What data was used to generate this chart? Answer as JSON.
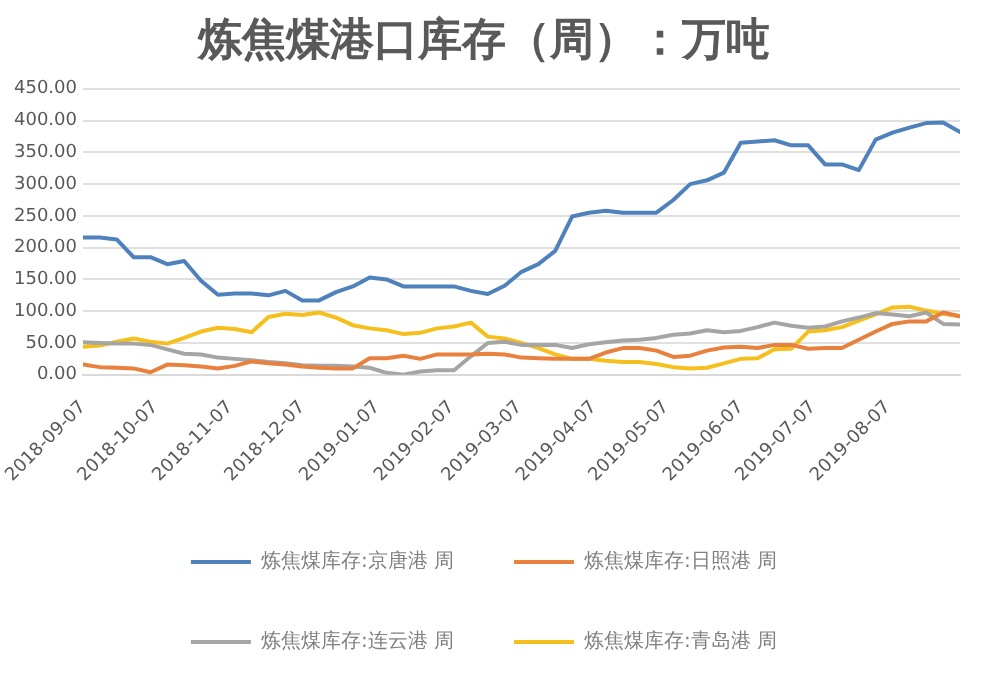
{
  "chart_data": {
    "type": "line",
    "title": "炼焦煤港口库存（周）：万吨",
    "x": [
      "2018-09-07",
      "2018-09-14",
      "2018-09-21",
      "2018-09-28",
      "2018-10-05",
      "2018-10-12",
      "2018-10-19",
      "2018-10-26",
      "2018-11-02",
      "2018-11-09",
      "2018-11-16",
      "2018-11-23",
      "2018-11-30",
      "2018-12-07",
      "2018-12-14",
      "2018-12-21",
      "2018-12-28",
      "2019-01-04",
      "2019-01-11",
      "2019-01-18",
      "2019-01-25",
      "2019-02-01",
      "2019-02-08",
      "2019-02-15",
      "2019-02-22",
      "2019-03-01",
      "2019-03-08",
      "2019-03-15",
      "2019-03-22",
      "2019-03-29",
      "2019-04-05",
      "2019-04-12",
      "2019-04-19",
      "2019-04-26",
      "2019-05-03",
      "2019-05-10",
      "2019-05-17",
      "2019-05-24",
      "2019-05-31",
      "2019-06-07",
      "2019-06-14",
      "2019-06-21",
      "2019-06-28",
      "2019-07-05",
      "2019-07-12",
      "2019-07-19",
      "2019-07-26",
      "2019-08-02",
      "2019-08-09",
      "2019-08-16",
      "2019-08-23",
      "2019-08-30",
      "2019-09-06"
    ],
    "series": [
      {
        "name": "炼焦煤库存:京唐港 周",
        "color": "#4f81bd",
        "values": [
          216,
          216,
          213,
          185,
          185,
          174,
          179,
          148,
          126,
          128,
          128,
          125,
          132,
          117,
          117,
          130,
          139,
          153,
          150,
          139,
          139,
          139,
          139,
          132,
          127,
          140,
          162,
          174,
          195,
          249,
          255,
          258,
          255,
          255,
          255,
          275,
          300,
          306,
          318,
          365,
          367,
          369,
          361,
          361,
          331,
          331,
          322,
          370,
          381,
          389,
          396,
          397,
          382
        ]
      },
      {
        "name": "炼焦煤库存:日照港 周",
        "color": "#e8803e",
        "values": [
          16,
          12,
          11,
          10,
          4,
          16,
          15,
          13,
          10,
          14,
          21,
          18,
          16,
          13,
          11,
          10,
          10,
          26,
          26,
          30,
          25,
          32,
          32,
          32,
          33,
          32,
          27,
          26,
          25,
          25,
          25,
          35,
          42,
          42,
          38,
          28,
          30,
          38,
          43,
          44,
          42,
          47,
          47,
          41,
          42,
          42,
          55,
          68,
          80,
          84,
          84,
          98,
          92
        ]
      },
      {
        "name": "炼焦煤库存:连云港 周",
        "color": "#a5a5a5",
        "values": [
          51,
          50,
          49,
          49,
          47,
          40,
          33,
          32,
          27,
          25,
          23,
          20,
          18,
          15,
          14,
          14,
          13,
          11,
          3,
          0,
          5,
          7,
          7,
          29,
          50,
          52,
          47,
          47,
          47,
          42,
          48,
          51,
          54,
          55,
          58,
          63,
          65,
          70,
          67,
          69,
          75,
          82,
          77,
          74,
          76,
          84,
          90,
          97,
          95,
          92,
          98,
          80,
          79
        ]
      },
      {
        "name": "炼焦煤库存:青岛港 周",
        "color": "#f5c01e",
        "values": [
          44,
          46,
          52,
          57,
          52,
          49,
          58,
          68,
          74,
          72,
          67,
          91,
          96,
          94,
          98,
          90,
          78,
          73,
          70,
          64,
          66,
          73,
          76,
          82,
          60,
          57,
          50,
          42,
          32,
          25,
          25,
          22,
          20,
          20,
          17,
          12,
          10,
          11,
          18,
          25,
          26,
          40,
          41,
          68,
          70,
          75,
          85,
          95,
          106,
          107,
          101,
          96,
          92
        ]
      }
    ],
    "xlim": [
      "2018-09-07",
      "2019-09-06"
    ],
    "xticks": [
      "2018-09-07",
      "2018-10-07",
      "2018-11-07",
      "2018-12-07",
      "2019-01-07",
      "2019-02-07",
      "2019-03-07",
      "2019-04-07",
      "2019-05-07",
      "2019-06-07",
      "2019-07-07",
      "2019-08-07"
    ],
    "ylim": [
      0,
      450
    ],
    "yticks": [
      {
        "value": 0,
        "label": "0.00"
      },
      {
        "value": 50,
        "label": "50.00"
      },
      {
        "value": 100,
        "label": "100.00"
      },
      {
        "value": 150,
        "label": "150.00"
      },
      {
        "value": 200,
        "label": "200.00"
      },
      {
        "value": 250,
        "label": "250.00"
      },
      {
        "value": 300,
        "label": "300.00"
      },
      {
        "value": 350,
        "label": "350.00"
      },
      {
        "value": 400,
        "label": "400.00"
      },
      {
        "value": 450,
        "label": "450.00"
      }
    ],
    "grid": "y",
    "legend": "bottom",
    "marker": "none",
    "line_style": "solid"
  }
}
